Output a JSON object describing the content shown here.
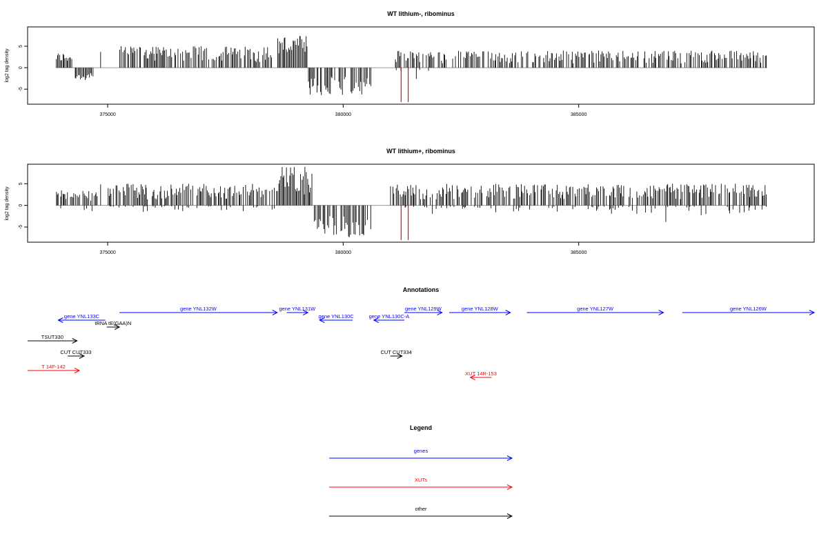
{
  "chart_data": [
    {
      "type": "bar",
      "title": "WT lithium-, ribominus",
      "ylabel": "log2 tag density",
      "xlim": [
        373300,
        390000
      ],
      "ylim": [
        -8.5,
        9.5
      ],
      "xticks": [
        375000,
        380000,
        385000
      ],
      "xtick_labels": [
        "375000",
        "380000",
        "385000"
      ],
      "yticks": [
        -5,
        0,
        5
      ],
      "ytick_labels": [
        "-5",
        "0",
        "5"
      ],
      "baseline_range": [
        373900,
        389000
      ],
      "highlight_color": "#ff0000",
      "highlights": [
        {
          "x": 381230,
          "y": -8.0
        },
        {
          "x": 381380,
          "y": -8.0
        }
      ],
      "profile": [
        {
          "x": [
            373900,
            374250
          ],
          "min": 0,
          "max": 3.5
        },
        {
          "x": [
            374300,
            374700
          ],
          "min": -3.0,
          "max": 0
        },
        {
          "x": [
            374850,
            374880
          ],
          "min": 0,
          "max": 5.5
        },
        {
          "x": [
            375250,
            378500
          ],
          "min": 0,
          "max": 5.0
        },
        {
          "x": [
            378600,
            379250
          ],
          "min": 0,
          "max": 7.5
        },
        {
          "x": [
            379250,
            380600
          ],
          "min": -6.5,
          "max": 0
        },
        {
          "x": [
            381100,
            382200
          ],
          "min": -3.0,
          "max": 4.0
        },
        {
          "x": [
            382300,
            389000
          ],
          "min": 0,
          "max": 4.0
        }
      ]
    },
    {
      "type": "bar",
      "title": "WT lithium+, ribominus",
      "ylabel": "log2 tag density",
      "xlim": [
        373300,
        390000
      ],
      "ylim": [
        -8.5,
        9.5
      ],
      "xticks": [
        375000,
        380000,
        385000
      ],
      "xtick_labels": [
        "375000",
        "380000",
        "385000"
      ],
      "yticks": [
        -5,
        0,
        5
      ],
      "ytick_labels": [
        "-5",
        "0",
        "5"
      ],
      "baseline_range": [
        373900,
        389000
      ],
      "highlight_color": "#ff0000",
      "highlights": [
        {
          "x": 381230,
          "y": -8.0
        },
        {
          "x": 381380,
          "y": -8.0
        }
      ],
      "profile": [
        {
          "x": [
            373900,
            374800
          ],
          "min": -4.5,
          "max": 3.5
        },
        {
          "x": [
            374850,
            374880
          ],
          "min": 0,
          "max": 5.5
        },
        {
          "x": [
            375000,
            378600
          ],
          "min": -1.5,
          "max": 5.0
        },
        {
          "x": [
            378600,
            379350
          ],
          "min": 0,
          "max": 9.0
        },
        {
          "x": [
            379350,
            380600
          ],
          "min": -7.5,
          "max": 0
        },
        {
          "x": [
            381000,
            389000
          ],
          "min": -2.0,
          "max": 5.0
        },
        {
          "x": [
            386850,
            386870
          ],
          "min": -4.5,
          "max": 0
        },
        {
          "x": [
            387600,
            387620
          ],
          "min": -2.8,
          "max": 0
        }
      ]
    }
  ],
  "annotations": {
    "title": "Annotations",
    "xlim": [
      373300,
      390000
    ],
    "items": [
      {
        "label": "gene YNL133C",
        "start": 374950,
        "end": 373950,
        "row": 1,
        "color": "#0000ff"
      },
      {
        "label": "tRNA tE(GAA)N",
        "start": 374980,
        "end": 375250,
        "row": 2,
        "color": "#000000"
      },
      {
        "label": "gene YNL132W",
        "start": 375250,
        "end": 378600,
        "row": 0,
        "color": "#0000ff"
      },
      {
        "label": "gene YNL131W",
        "start": 378800,
        "end": 379250,
        "row": 0,
        "color": "#0000ff"
      },
      {
        "label": "gene YNL130C",
        "start": 380200,
        "end": 379500,
        "row": 1,
        "color": "#0000ff"
      },
      {
        "label": "gene YNL130C-A",
        "start": 381300,
        "end": 380650,
        "row": 1,
        "color": "#0000ff"
      },
      {
        "label": "gene YNL129W",
        "start": 381300,
        "end": 382100,
        "row": 0,
        "color": "#0000ff"
      },
      {
        "label": "gene YNL128W",
        "start": 382250,
        "end": 383550,
        "row": 0,
        "color": "#0000ff"
      },
      {
        "label": "gene YNL127W",
        "start": 383900,
        "end": 386800,
        "row": 0,
        "color": "#0000ff"
      },
      {
        "label": "gene YNL126W",
        "start": 387200,
        "end": 390000,
        "row": 0,
        "color": "#0000ff"
      },
      {
        "label": "TSUT330",
        "start": 373300,
        "end": 374350,
        "row": 3,
        "color": "#000000"
      },
      {
        "label": "CUT CUT333",
        "start": 374150,
        "end": 374500,
        "row": 4,
        "color": "#000000"
      },
      {
        "label": "CUT CUT334",
        "start": 381000,
        "end": 381250,
        "row": 4,
        "color": "#000000"
      },
      {
        "label": "T 14F-142",
        "start": 373300,
        "end": 374400,
        "row": 5,
        "color": "#ff0000"
      },
      {
        "label": "XUT 14R-153",
        "start": 383150,
        "end": 382700,
        "row": 6,
        "color": "#ff0000"
      }
    ]
  },
  "legend": {
    "title": "Legend",
    "items": [
      {
        "label": "genes",
        "color": "#0000ff"
      },
      {
        "label": "XUTs",
        "color": "#ff0000"
      },
      {
        "label": "other",
        "color": "#000000"
      }
    ]
  }
}
